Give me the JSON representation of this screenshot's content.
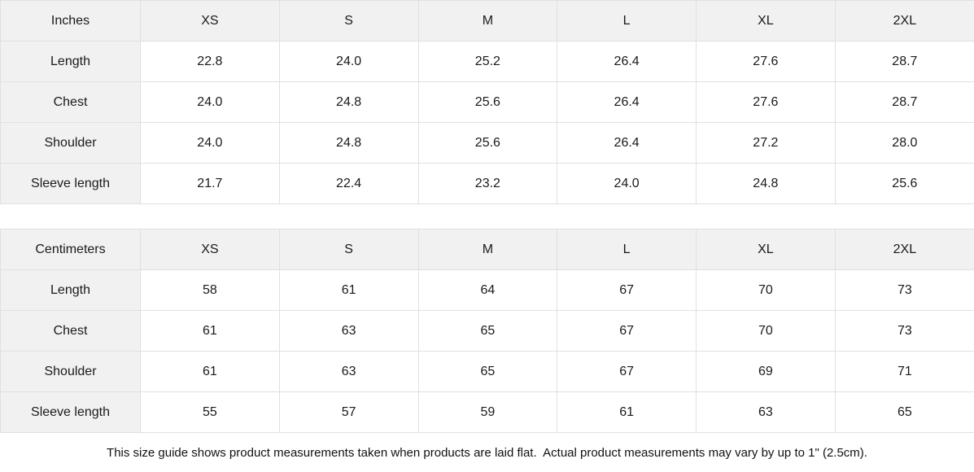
{
  "colors": {
    "header_bg": "#f1f1f1",
    "cell_bg": "#ffffff",
    "border": "#e0e0e0",
    "text": "#1a1a1a"
  },
  "sizes": [
    "XS",
    "S",
    "M",
    "L",
    "XL",
    "2XL"
  ],
  "tables": [
    {
      "unit_label": "Inches",
      "rows": [
        {
          "label": "Length",
          "values": [
            "22.8",
            "24.0",
            "25.2",
            "26.4",
            "27.6",
            "28.7"
          ]
        },
        {
          "label": "Chest",
          "values": [
            "24.0",
            "24.8",
            "25.6",
            "26.4",
            "27.6",
            "28.7"
          ]
        },
        {
          "label": "Shoulder",
          "values": [
            "24.0",
            "24.8",
            "25.6",
            "26.4",
            "27.2",
            "28.0"
          ]
        },
        {
          "label": "Sleeve length",
          "values": [
            "21.7",
            "22.4",
            "23.2",
            "24.0",
            "24.8",
            "25.6"
          ]
        }
      ]
    },
    {
      "unit_label": "Centimeters",
      "rows": [
        {
          "label": "Length",
          "values": [
            "58",
            "61",
            "64",
            "67",
            "70",
            "73"
          ]
        },
        {
          "label": "Chest",
          "values": [
            "61",
            "63",
            "65",
            "67",
            "70",
            "73"
          ]
        },
        {
          "label": "Shoulder",
          "values": [
            "61",
            "63",
            "65",
            "67",
            "69",
            "71"
          ]
        },
        {
          "label": "Sleeve length",
          "values": [
            "55",
            "57",
            "59",
            "61",
            "63",
            "65"
          ]
        }
      ]
    }
  ],
  "footer": {
    "note": "This size guide shows product measurements taken when products are laid flat.  Actual product measurements may vary by up to 1\" (2.5cm)."
  },
  "chart_data": [
    {
      "type": "table",
      "title": "Inches",
      "columns": [
        "Inches",
        "XS",
        "S",
        "M",
        "L",
        "XL",
        "2XL"
      ],
      "rows": [
        [
          "Length",
          22.8,
          24.0,
          25.2,
          26.4,
          27.6,
          28.7
        ],
        [
          "Chest",
          24.0,
          24.8,
          25.6,
          26.4,
          27.6,
          28.7
        ],
        [
          "Shoulder",
          24.0,
          24.8,
          25.6,
          26.4,
          27.2,
          28.0
        ],
        [
          "Sleeve length",
          21.7,
          22.4,
          23.2,
          24.0,
          24.8,
          25.6
        ]
      ]
    },
    {
      "type": "table",
      "title": "Centimeters",
      "columns": [
        "Centimeters",
        "XS",
        "S",
        "M",
        "L",
        "XL",
        "2XL"
      ],
      "rows": [
        [
          "Length",
          58,
          61,
          64,
          67,
          70,
          73
        ],
        [
          "Chest",
          61,
          63,
          65,
          67,
          70,
          73
        ],
        [
          "Shoulder",
          61,
          63,
          65,
          67,
          69,
          71
        ],
        [
          "Sleeve length",
          55,
          57,
          59,
          61,
          63,
          65
        ]
      ]
    }
  ]
}
